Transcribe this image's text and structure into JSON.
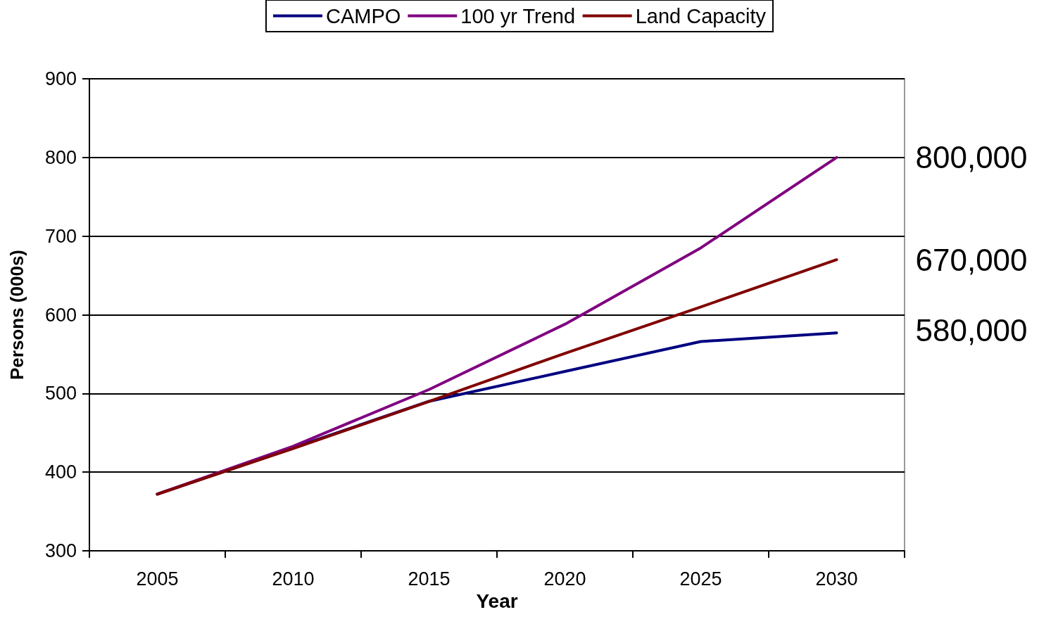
{
  "chart_data": {
    "type": "line",
    "xlabel": "Year",
    "ylabel": "Persons (000s)",
    "categories": [
      "2005",
      "2010",
      "2015",
      "2020",
      "2025",
      "2030"
    ],
    "series": [
      {
        "name": "CAMPO",
        "color": "#000080",
        "values": [
          372,
          431,
          490,
          528,
          566,
          577
        ]
      },
      {
        "name": "100 yr Trend",
        "color": "#800080",
        "values": [
          372,
          433,
          505,
          588,
          685,
          800
        ]
      },
      {
        "name": "Land Capacity",
        "color": "#800000",
        "values": [
          372,
          430,
          490,
          551,
          610,
          670
        ]
      }
    ],
    "ylim": [
      300,
      900
    ],
    "yticks": [
      300,
      400,
      500,
      600,
      700,
      800,
      900
    ],
    "grid": "y",
    "legend": "top",
    "marker": "none",
    "line_style": "solid",
    "annotations": [
      {
        "text": "800,000",
        "x": "2030",
        "y": 800
      },
      {
        "text": "670,000",
        "x": "2030",
        "y": 670
      },
      {
        "text": "580,000",
        "x": "2030",
        "y": 580
      }
    ]
  }
}
